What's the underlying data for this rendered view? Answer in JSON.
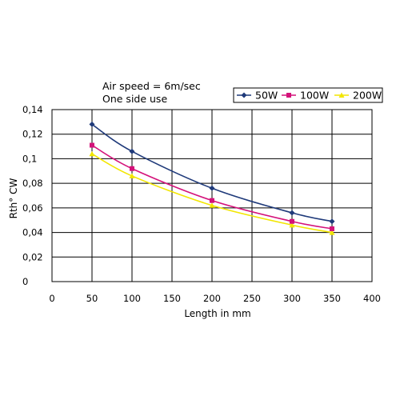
{
  "chart_data": {
    "type": "line",
    "annotations": [
      "Air speed = 6m/sec",
      "One side use"
    ],
    "xlabel": "Length in mm",
    "ylabel": "Rth° CW",
    "xlim": [
      0,
      400
    ],
    "ylim": [
      0,
      0.14
    ],
    "x_ticks": [
      0,
      50,
      100,
      150,
      200,
      250,
      300,
      350,
      400
    ],
    "x_tick_labels": [
      "0",
      "50",
      "100",
      "150",
      "200",
      "250",
      "300",
      "350",
      "400"
    ],
    "y_ticks": [
      0,
      0.02,
      0.04,
      0.06,
      0.08,
      0.1,
      0.12,
      0.14
    ],
    "y_tick_labels": [
      "0",
      "0,02",
      "0,04",
      "0,06",
      "0,08",
      "0,1",
      "0,12",
      "0,14"
    ],
    "grid": true,
    "legend_position": "top-right",
    "x": [
      50,
      100,
      200,
      300,
      350
    ],
    "series": [
      {
        "name": "50W",
        "color": "#1f3a7a",
        "marker": "diamond",
        "values": [
          0.128,
          0.106,
          0.076,
          0.056,
          0.049
        ]
      },
      {
        "name": "100W",
        "color": "#d4127a",
        "marker": "square",
        "values": [
          0.111,
          0.092,
          0.066,
          0.049,
          0.043
        ]
      },
      {
        "name": "200W",
        "color": "#f2e600",
        "marker": "triangle",
        "values": [
          0.104,
          0.086,
          0.062,
          0.046,
          0.04
        ]
      }
    ]
  }
}
